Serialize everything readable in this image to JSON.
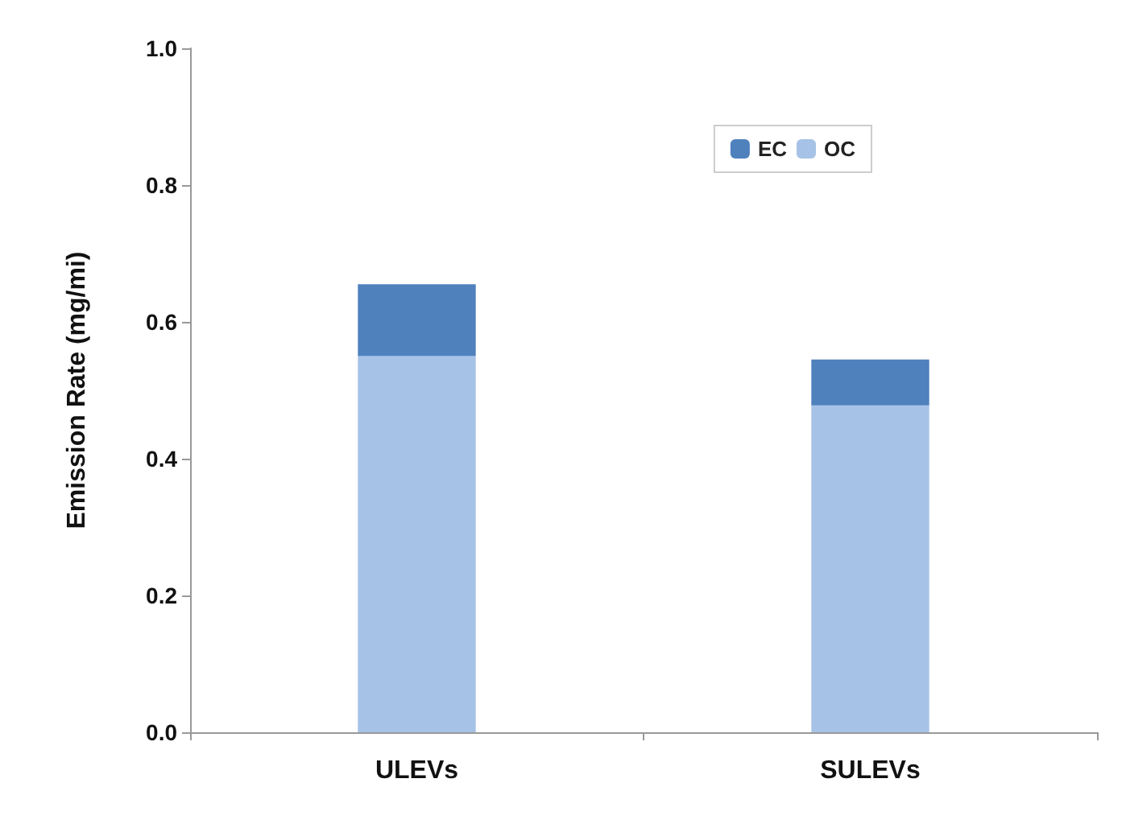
{
  "chart_data": {
    "type": "bar",
    "stacked": true,
    "ylabel": "Emission Rate (mg/mi)",
    "categories": [
      "ULEVs",
      "SULEVs"
    ],
    "series": [
      {
        "name": "OC",
        "color": "#a6c2e6",
        "values": [
          0.55,
          0.478
        ]
      },
      {
        "name": "EC",
        "color": "#4f81bd",
        "values": [
          0.105,
          0.067
        ]
      }
    ],
    "ylim": [
      0,
      1
    ],
    "yticks": [
      {
        "value": 0,
        "label": "0.0"
      },
      0.2,
      0.4,
      0.6,
      0.8,
      {
        "value": 1,
        "label": "1.0"
      }
    ],
    "grid": false,
    "legend": "top right"
  }
}
